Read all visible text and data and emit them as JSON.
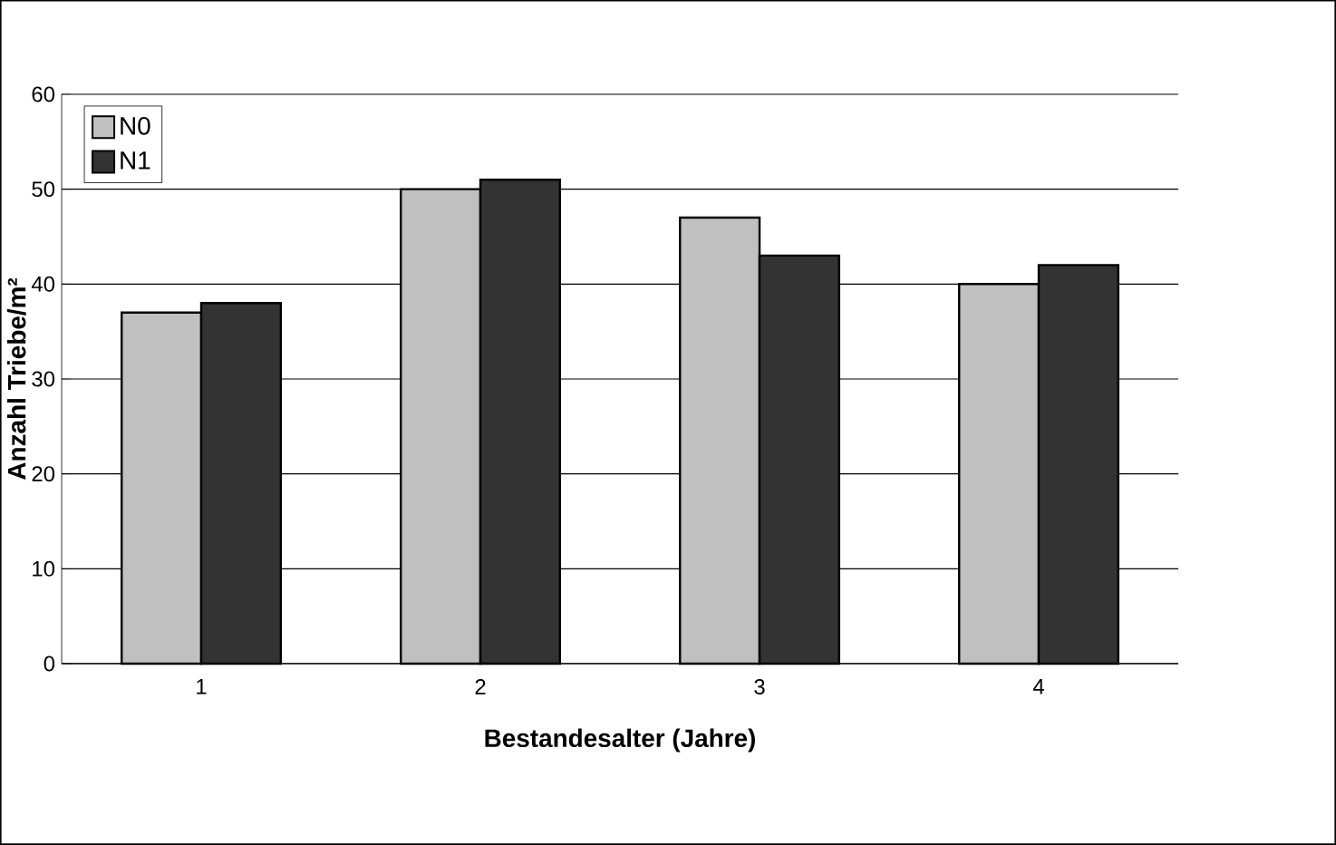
{
  "chart_data": {
    "type": "bar",
    "xlabel": "Bestandesalter (Jahre)",
    "ylabel": "Anzahl Triebe/m²",
    "categories": [
      "1",
      "2",
      "3",
      "4"
    ],
    "series": [
      {
        "name": "N0",
        "color": "#c0c0c0",
        "values": [
          37,
          50,
          47,
          40
        ]
      },
      {
        "name": "N1",
        "color": "#333333",
        "values": [
          38,
          51,
          43,
          42
        ]
      }
    ],
    "ylim": [
      0,
      60
    ],
    "yticks": [
      0,
      10,
      20,
      30,
      40,
      50,
      60
    ],
    "grid": "y",
    "legend": "top left"
  }
}
